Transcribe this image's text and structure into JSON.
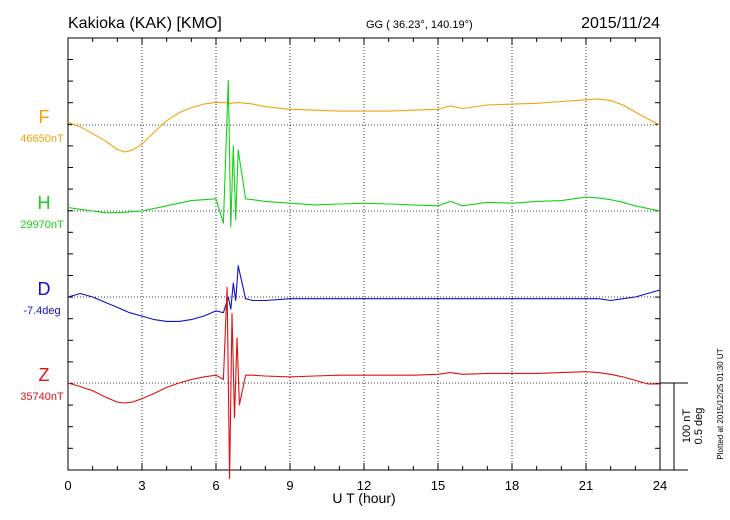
{
  "header": {
    "station": "Kakioka (KAK)  [KMO]",
    "coords": "GG ( 36.23°, 140.19°)",
    "date": "2015/11/24"
  },
  "side_note": "Plotted at 2015/12/25 01:30 UT",
  "scale_bar": {
    "line1": "100 nT",
    "line2": "0.5 deg"
  },
  "colors": {
    "F": "#f2a20c",
    "H": "#18d018",
    "D": "#1010d0",
    "Z": "#e01010",
    "grid": "#000000"
  },
  "chart_data": {
    "type": "line",
    "xlabel": "U T (hour)",
    "xlim": [
      0,
      24
    ],
    "xticks": [
      "0",
      "3",
      "6",
      "9",
      "12",
      "15",
      "18",
      "21",
      "24"
    ],
    "y_units_note": "each trace is offset from its baseline; 100 nT (0.5 deg for D) per scale bar",
    "series": [
      {
        "name": "F",
        "baseline_label": "46650nT",
        "color": "#f2a20c",
        "unit": "nT",
        "x": [
          0,
          0.5,
          1,
          1.5,
          2,
          2.3,
          2.6,
          3,
          3.5,
          4,
          4.5,
          5,
          5.5,
          6,
          6.3,
          6.6,
          6.9,
          7.5,
          8,
          9,
          10,
          11,
          12,
          13,
          14,
          15,
          15.5,
          16,
          17,
          18,
          19,
          20,
          21,
          21.5,
          22,
          22.5,
          23,
          23.5,
          24
        ],
        "y": [
          3,
          -2,
          -10,
          -18,
          -28,
          -31,
          -29,
          -22,
          -8,
          5,
          14,
          20,
          24,
          26,
          26,
          25,
          26,
          24,
          21,
          18,
          17,
          16,
          16,
          16,
          17,
          18,
          22,
          19,
          23,
          24,
          25,
          27,
          29,
          30,
          28,
          23,
          15,
          7,
          0
        ]
      },
      {
        "name": "H",
        "baseline_label": "29970nT",
        "color": "#18d018",
        "unit": "nT",
        "x": [
          0,
          0.5,
          1,
          1.5,
          2,
          2.5,
          3,
          3.5,
          4,
          4.5,
          5,
          5.5,
          6,
          6.3,
          6.5,
          6.6,
          6.7,
          6.8,
          6.9,
          7.2,
          7.5,
          8,
          9,
          10,
          11,
          12,
          13,
          14,
          15,
          15.5,
          16,
          17,
          18,
          19,
          20,
          21,
          21.5,
          22,
          22.5,
          23,
          23.5,
          24
        ],
        "y": [
          4,
          2,
          0,
          -2,
          -2,
          -1,
          0,
          3,
          6,
          9,
          12,
          13,
          14,
          -14,
          150,
          -18,
          75,
          -10,
          70,
          14,
          13,
          11,
          9,
          7,
          8,
          9,
          8,
          7,
          6,
          11,
          6,
          10,
          9,
          11,
          12,
          16,
          15,
          13,
          10,
          6,
          3,
          0
        ]
      },
      {
        "name": "D",
        "baseline_label": "-7.4deg",
        "color": "#1010d0",
        "unit": "deg",
        "x": [
          0,
          0.5,
          1,
          1.5,
          2,
          2.5,
          3,
          3.5,
          4,
          4.5,
          5,
          5.5,
          6,
          6.3,
          6.5,
          6.6,
          6.7,
          6.8,
          6.9,
          7.2,
          7.5,
          8,
          9,
          10,
          11,
          12,
          13,
          14,
          15,
          16,
          17,
          18,
          19,
          20,
          21,
          21.5,
          22,
          22.5,
          23,
          23.5,
          24
        ],
        "y": [
          0.0,
          0.02,
          0.0,
          -0.03,
          -0.06,
          -0.09,
          -0.11,
          -0.13,
          -0.14,
          -0.14,
          -0.13,
          -0.11,
          -0.08,
          -0.09,
          0.0,
          -0.07,
          0.08,
          -0.02,
          0.18,
          -0.01,
          -0.02,
          -0.02,
          -0.01,
          -0.01,
          -0.01,
          -0.01,
          -0.01,
          -0.01,
          -0.01,
          -0.01,
          -0.01,
          -0.01,
          -0.01,
          -0.01,
          -0.01,
          -0.01,
          -0.02,
          -0.01,
          0.0,
          0.02,
          0.04
        ]
      },
      {
        "name": "Z",
        "baseline_label": "35740nT",
        "color": "#e01010",
        "unit": "nT",
        "x": [
          0,
          0.5,
          1,
          1.5,
          2,
          2.3,
          2.6,
          3,
          3.5,
          4,
          4.5,
          5,
          5.5,
          6,
          6.3,
          6.45,
          6.55,
          6.65,
          6.75,
          6.85,
          6.95,
          7.2,
          7.5,
          8,
          9,
          10,
          11,
          12,
          13,
          14,
          15,
          15.5,
          16,
          17,
          18,
          19,
          20,
          21,
          21.5,
          22,
          22.5,
          23,
          23.5,
          24
        ],
        "y": [
          0,
          -4,
          -9,
          -16,
          -22,
          -23,
          -22,
          -18,
          -12,
          -5,
          0,
          4,
          7,
          9,
          4,
          110,
          -110,
          80,
          -40,
          52,
          -25,
          9,
          9,
          8,
          7,
          8,
          9,
          9,
          9,
          9,
          10,
          12,
          10,
          11,
          11,
          11,
          12,
          13,
          12,
          10,
          7,
          3,
          -1,
          -1
        ]
      }
    ]
  }
}
